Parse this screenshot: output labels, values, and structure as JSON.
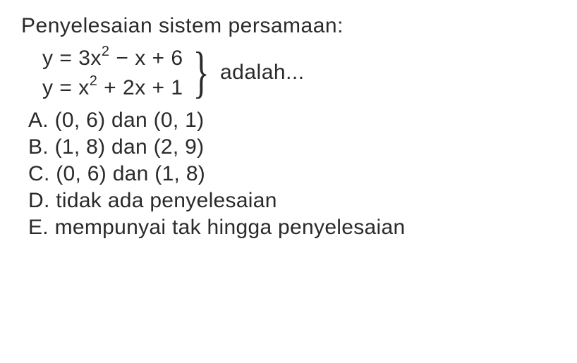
{
  "title": "Penyelesaian sistem persamaan:",
  "equations": {
    "eq1": {
      "lhs": "y = ",
      "term1_coef": "3x",
      "term1_exp": "2",
      "term2": " − x + 6"
    },
    "eq2": {
      "lhs": "y = ",
      "term1_coef": "x",
      "term1_exp": "2",
      "term2": " + 2x + 1"
    },
    "suffix": "adalah..."
  },
  "options": {
    "a": "A. (0, 6) dan (0, 1)",
    "b": "B. (1, 8) dan (2, 9)",
    "c": "C. (0, 6) dan (1, 8)",
    "d": "D. tidak ada penyelesaian",
    "e": "E. mempunyai tak hingga penyelesaian"
  },
  "colors": {
    "text": "#2a2a2a",
    "background": "#ffffff"
  },
  "typography": {
    "base_fontsize": 30,
    "sup_fontsize": 20,
    "font_family": "Comic Sans MS"
  }
}
